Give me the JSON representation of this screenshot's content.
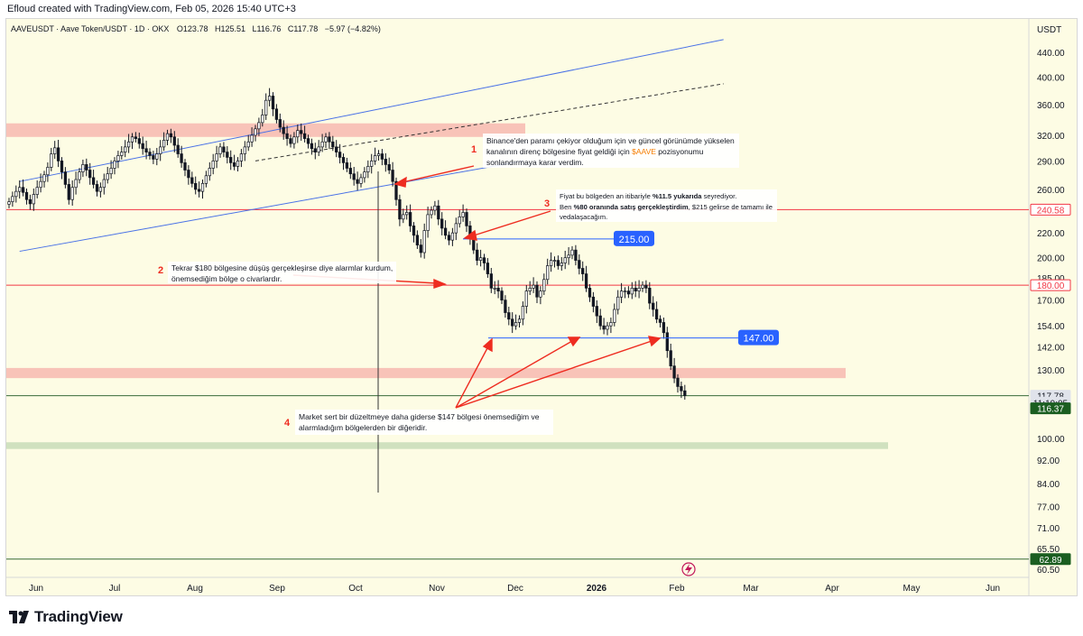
{
  "header": {
    "credit": "Efloud created with TradingView.com, Feb 05, 2026 15:40 UTC+3"
  },
  "footer": {
    "brand": "TradingView"
  },
  "chart_data": {
    "type": "candlestick",
    "symbol_line": "AAVEUSDT · Aave Token/USDT · 1D · OKX",
    "ohlc": {
      "O": "O123.78",
      "H": "H125.51",
      "L": "L116.76",
      "C": "C117.78",
      "change": "−5.97 (−4.82%)"
    },
    "currency": "USDT",
    "y_axis": {
      "scale": "log",
      "ylim": [
        60.5,
        480
      ],
      "ticks": [
        "440.00",
        "400.00",
        "360.00",
        "320.00",
        "290.00",
        "260.00",
        "240.00",
        "220.00",
        "200.00",
        "185.00",
        "170.00",
        "154.00",
        "142.00",
        "130.00",
        "100.00",
        "92.00",
        "84.00",
        "77.00",
        "71.00",
        "65.50",
        "60.50"
      ]
    },
    "x_axis": {
      "ticks": [
        "Jun",
        "Jul",
        "Aug",
        "Sep",
        "Oct",
        "Nov",
        "Dec",
        "2026",
        "Feb",
        "Mar",
        "Apr",
        "May",
        "Jun"
      ],
      "bold_ticks": [
        "2026"
      ]
    },
    "price_badges": [
      {
        "label": "240.58",
        "value": 240.58,
        "color": "#f23645",
        "style": "outline"
      },
      {
        "label": "180.00",
        "value": 180.0,
        "color": "#f23645",
        "style": "outline"
      },
      {
        "label": "117.78",
        "value": 117.78,
        "color": "#e0e3eb",
        "style": "light"
      },
      {
        "label": "11:19:05",
        "value": 114.7,
        "color": "#e0e3eb",
        "style": "light"
      },
      {
        "label": "116.37",
        "value": 112.2,
        "color": "#1b5e20",
        "style": "dark"
      },
      {
        "label": "62.89",
        "value": 62.89,
        "color": "#1b5e20",
        "style": "dark"
      }
    ],
    "horizontal_levels": [
      {
        "value": 240.58,
        "color": "#f23645"
      },
      {
        "value": 180.0,
        "color": "#f23645"
      },
      {
        "value": 117.78,
        "color": "#3a6b3a"
      },
      {
        "value": 62.89,
        "color": "#3a6b3a"
      }
    ],
    "zones": [
      {
        "from": 318,
        "to": 335,
        "color": "#f7b9b0"
      },
      {
        "from": 126,
        "to": 131,
        "color": "#f7b9b0"
      },
      {
        "from": 96,
        "to": 98.5,
        "color": "#c8dcb8"
      }
    ],
    "level_labels": [
      {
        "label": "215.00",
        "value": 215.0,
        "color": "#2962ff"
      },
      {
        "label": "147.00",
        "value": 147.0,
        "color": "#2962ff"
      }
    ],
    "close_series": [
      248,
      253,
      258,
      262,
      257,
      250,
      246,
      255,
      262,
      268,
      275,
      283,
      298,
      305,
      290,
      278,
      265,
      250,
      262,
      270,
      278,
      286,
      280,
      272,
      265,
      258,
      262,
      270,
      276,
      282,
      290,
      296,
      300,
      306,
      312,
      318,
      316,
      310,
      304,
      300,
      296,
      292,
      298,
      306,
      314,
      322,
      318,
      308,
      298,
      288,
      280,
      272,
      266,
      260,
      258,
      266,
      274,
      282,
      290,
      298,
      306,
      300,
      294,
      288,
      284,
      290,
      298,
      306,
      312,
      320,
      328,
      336,
      346,
      366,
      372,
      354,
      340,
      330,
      322,
      316,
      310,
      318,
      326,
      322,
      316,
      310,
      304,
      300,
      306,
      312,
      318,
      312,
      306,
      300,
      294,
      288,
      282,
      276,
      270,
      266,
      272,
      278,
      284,
      290,
      296,
      298,
      292,
      286,
      280,
      268,
      250,
      232,
      236,
      238,
      226,
      218,
      210,
      204,
      222,
      236,
      240,
      244,
      232,
      224,
      218,
      214,
      220,
      228,
      234,
      238,
      226,
      216,
      206,
      198,
      200,
      196,
      188,
      178,
      178,
      176,
      170,
      162,
      158,
      154,
      156,
      158,
      166,
      176,
      178,
      180,
      172,
      176,
      184,
      194,
      198,
      198,
      194,
      196,
      200,
      202,
      206,
      198,
      192,
      188,
      178,
      172,
      166,
      160,
      154,
      152,
      154,
      156,
      164,
      172,
      176,
      176,
      174,
      178,
      176,
      178,
      180,
      178,
      168,
      164,
      158,
      156,
      150,
      140,
      132,
      126,
      122,
      120,
      117.78
    ],
    "channel_lines": [
      {
        "type": "upper",
        "color": "#4a72e6",
        "style": "solid",
        "from": [
          3,
          268
        ],
        "to": [
          203,
          462
        ]
      },
      {
        "type": "lower",
        "color": "#4a72e6",
        "style": "solid",
        "from": [
          3,
          205
        ],
        "to": [
          146,
          290
        ]
      },
      {
        "type": "mid",
        "color": "#333333",
        "style": "dashed",
        "from": [
          70,
          290
        ],
        "to": [
          203,
          390
        ]
      }
    ],
    "annotations": [
      {
        "number": "1",
        "lines": [
          "Binance'den paramı çekiyor olduğum için ve güncel görünümde yükselen",
          "kanalının direnç bölgesine fiyat geldiği için $AAVE pozisyonumu",
          "sonlandırmaya karar verdim."
        ],
        "highlight": "$AAVE",
        "highlight_color": "#f57c00"
      },
      {
        "number": "2",
        "lines": [
          "Tekrar $180 bölgesine düşüş gerçekleşirse diye alarmlar kurdum,",
          "önemsediğim bölge o civarlardır."
        ]
      },
      {
        "number": "3",
        "lines": [
          "Fiyat bu bölgeden an itibariyle %11.5 yukarıda seyrediyor.",
          "Ben %80 oranında satış gerçekleştirdim, $215 gelirse de tamamı ile",
          "vedalaşacağım."
        ],
        "bold_fragments": [
          "%11.5 yukarıda",
          "%80 oranında satış gerçekleştirdim"
        ]
      },
      {
        "number": "4",
        "lines": [
          "Market sert bir düzeltmeye daha giderse $147 bölgesi önemsediğim ve",
          "alarmladığım bölgelerden bir diğeridir."
        ]
      }
    ]
  }
}
